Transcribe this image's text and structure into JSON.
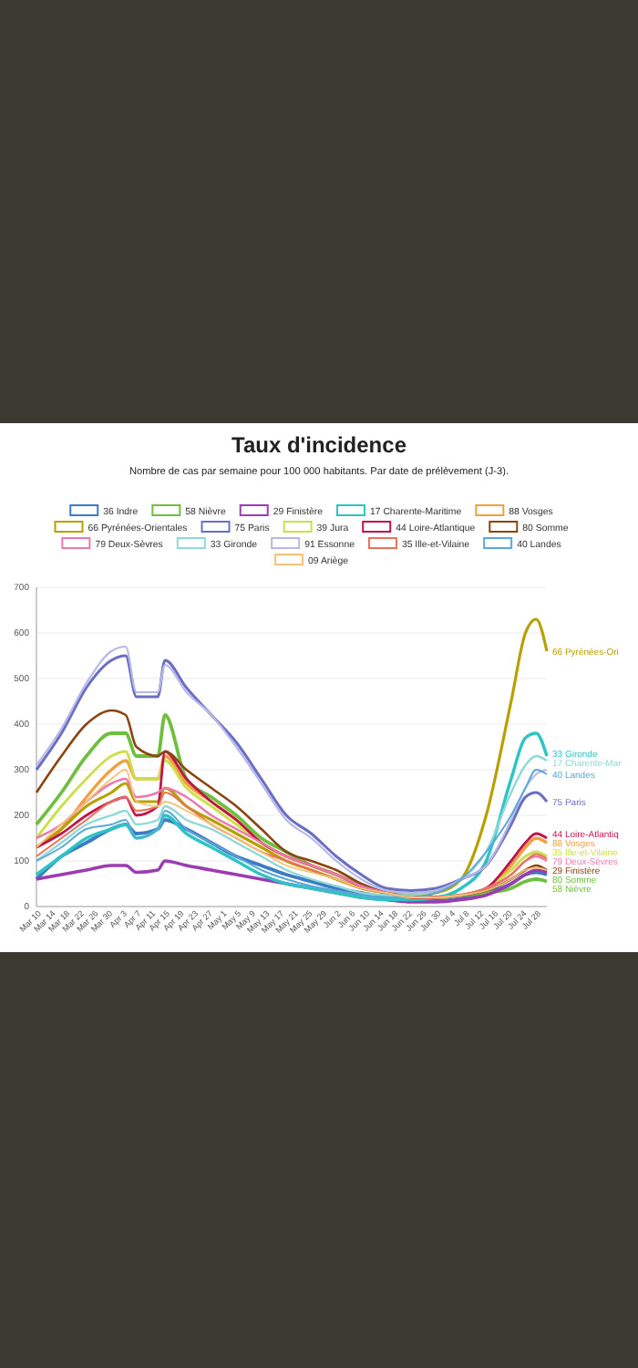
{
  "chart_data": {
    "type": "line",
    "title": "Taux d'incidence",
    "subtitle": "Nombre de cas par semaine pour 100 000 habitants. Par date de prélèvement (J-3).",
    "x": [
      "--03-10",
      "--03-17",
      "--03-24",
      "--03-31",
      "--04-04",
      "--04-07",
      "--04-13",
      "--04-15",
      "--04-21",
      "--04-28",
      "--05-05",
      "--05-12",
      "--05-19",
      "--05-26",
      "--06-02",
      "--06-09",
      "--06-16",
      "--06-23",
      "--06-30",
      "--07-07",
      "--07-14",
      "--07-21",
      "--07-25",
      "--07-28",
      "--07-31"
    ],
    "series": [
      {
        "name": "36 Indre",
        "color": "#3a7dc4",
        "values": [
          60,
          110,
          140,
          170,
          180,
          160,
          170,
          190,
          170,
          140,
          110,
          90,
          70,
          55,
          40,
          30,
          20,
          15,
          15,
          20,
          30,
          50,
          70,
          75,
          70
        ]
      },
      {
        "name": "58 Nièvre",
        "color": "#6fbf3f",
        "values": [
          180,
          250,
          330,
          380,
          380,
          330,
          330,
          420,
          280,
          240,
          200,
          150,
          120,
          90,
          70,
          45,
          30,
          20,
          20,
          25,
          30,
          40,
          55,
          60,
          55
        ]
      },
      {
        "name": "29 Finistère",
        "color": "#9b3cb0",
        "values": [
          60,
          70,
          80,
          90,
          90,
          75,
          80,
          100,
          90,
          80,
          70,
          60,
          50,
          40,
          30,
          20,
          15,
          10,
          10,
          15,
          25,
          50,
          70,
          80,
          75
        ]
      },
      {
        "name": "17 Charente-Maritime",
        "color": "#2ec4c4",
        "values": [
          70,
          110,
          150,
          170,
          180,
          150,
          170,
          200,
          160,
          130,
          100,
          70,
          50,
          40,
          30,
          20,
          15,
          15,
          20,
          40,
          100,
          280,
          370,
          380,
          330
        ]
      },
      {
        "name": "88 Vosges",
        "color": "#f0a040",
        "values": [
          130,
          170,
          240,
          300,
          320,
          280,
          280,
          330,
          270,
          230,
          190,
          140,
          110,
          90,
          70,
          45,
          30,
          20,
          20,
          25,
          40,
          90,
          130,
          150,
          140
        ]
      },
      {
        "name": "66 Pyrénées-Orientales",
        "color": "#b8a000",
        "values": [
          130,
          170,
          220,
          250,
          270,
          230,
          230,
          260,
          220,
          190,
          160,
          130,
          100,
          80,
          60,
          40,
          30,
          25,
          30,
          60,
          200,
          450,
          600,
          630,
          560
        ]
      },
      {
        "name": "75 Paris",
        "color": "#6a6fc4",
        "values": [
          300,
          380,
          480,
          540,
          550,
          460,
          460,
          540,
          480,
          420,
          360,
          280,
          200,
          160,
          110,
          70,
          40,
          35,
          40,
          60,
          90,
          180,
          240,
          250,
          230
        ]
      },
      {
        "name": "39 Jura",
        "color": "#cce04a",
        "values": [
          150,
          220,
          280,
          330,
          340,
          280,
          280,
          320,
          260,
          220,
          180,
          140,
          110,
          90,
          70,
          45,
          30,
          20,
          20,
          25,
          40,
          80,
          110,
          120,
          110
        ]
      },
      {
        "name": "44 Loire-Atlantique",
        "color": "#c0144c",
        "values": [
          130,
          160,
          200,
          230,
          240,
          200,
          220,
          340,
          280,
          230,
          190,
          140,
          110,
          90,
          70,
          45,
          30,
          20,
          20,
          25,
          40,
          100,
          140,
          160,
          150
        ]
      },
      {
        "name": "80 Somme",
        "color": "#8b4513",
        "values": [
          250,
          330,
          400,
          430,
          420,
          350,
          330,
          340,
          300,
          260,
          220,
          170,
          120,
          100,
          80,
          50,
          30,
          20,
          20,
          25,
          35,
          60,
          80,
          90,
          80
        ]
      },
      {
        "name": "79 Deux-Sèvres",
        "color": "#e87ab0",
        "values": [
          150,
          180,
          230,
          270,
          280,
          240,
          250,
          260,
          240,
          200,
          170,
          140,
          110,
          90,
          70,
          45,
          30,
          20,
          20,
          25,
          40,
          70,
          100,
          110,
          100
        ]
      },
      {
        "name": "33 Gironde",
        "color": "#8ed8d8",
        "values": [
          100,
          140,
          180,
          200,
          210,
          180,
          190,
          220,
          190,
          170,
          140,
          110,
          80,
          60,
          45,
          30,
          25,
          25,
          35,
          60,
          120,
          250,
          310,
          330,
          320
        ]
      },
      {
        "name": "91 Essonne",
        "color": "#b8b8e8",
        "values": [
          310,
          390,
          490,
          560,
          570,
          470,
          470,
          530,
          470,
          420,
          350,
          270,
          190,
          150,
          100,
          60,
          35,
          30,
          35,
          60,
          90,
          190,
          260,
          290,
          300
        ]
      },
      {
        "name": "35 Ille-et-Vilaine",
        "color": "#e8735a",
        "values": [
          110,
          150,
          190,
          230,
          240,
          210,
          220,
          250,
          220,
          180,
          150,
          120,
          100,
          80,
          60,
          40,
          30,
          20,
          20,
          25,
          40,
          70,
          100,
          115,
          105
        ]
      },
      {
        "name": "40 Landes",
        "color": "#5ba7d9",
        "values": [
          100,
          130,
          170,
          180,
          190,
          150,
          170,
          210,
          170,
          140,
          110,
          80,
          60,
          45,
          35,
          25,
          20,
          20,
          30,
          60,
          120,
          200,
          260,
          300,
          290
        ]
      },
      {
        "name": "09 Ariège",
        "color": "#f5c27a",
        "values": [
          130,
          180,
          230,
          280,
          300,
          230,
          220,
          230,
          210,
          180,
          150,
          120,
          90,
          75,
          60,
          40,
          30,
          20,
          20,
          25,
          35,
          60,
          80,
          85,
          80
        ]
      }
    ],
    "xlim": [
      "--03-10",
      "--07-31"
    ],
    "xticks": [
      {
        "value": "--03-10",
        "label": "Mar 10"
      },
      {
        "value": "--03-14",
        "label": "Mar 14"
      },
      {
        "value": "--03-18",
        "label": "Mar 18"
      },
      {
        "value": "--03-22",
        "label": "Mar 22"
      },
      {
        "value": "--03-26",
        "label": "Mar 26"
      },
      {
        "value": "--03-30",
        "label": "Mar 30"
      },
      {
        "value": "--04-03",
        "label": "Apr 3"
      },
      {
        "value": "--04-07",
        "label": "Apr 7"
      },
      {
        "value": "--04-11",
        "label": "Apr 11"
      },
      {
        "value": "--04-15",
        "label": "Apr 15"
      },
      {
        "value": "--04-19",
        "label": "Apr 19"
      },
      {
        "value": "--04-23",
        "label": "Apr 23"
      },
      {
        "value": "--04-27",
        "label": "Apr 27"
      },
      {
        "value": "--05-01",
        "label": "May 1"
      },
      {
        "value": "--05-05",
        "label": "May 5"
      },
      {
        "value": "--05-09",
        "label": "May 9"
      },
      {
        "value": "--05-13",
        "label": "May 13"
      },
      {
        "value": "--05-17",
        "label": "May 17"
      },
      {
        "value": "--05-21",
        "label": "May 21"
      },
      {
        "value": "--05-25",
        "label": "May 25"
      },
      {
        "value": "--05-29",
        "label": "May 29"
      },
      {
        "value": "--06-02",
        "label": "Jun 2"
      },
      {
        "value": "--06-06",
        "label": "Jun 6"
      },
      {
        "value": "--06-10",
        "label": "Jun 10"
      },
      {
        "value": "--06-14",
        "label": "Jun 14"
      },
      {
        "value": "--06-18",
        "label": "Jun 18"
      },
      {
        "value": "--06-22",
        "label": "Jun 22"
      },
      {
        "value": "--06-26",
        "label": "Jun 26"
      },
      {
        "value": "--06-30",
        "label": "Jun 30"
      },
      {
        "value": "--07-04",
        "label": "Jul 4"
      },
      {
        "value": "--07-08",
        "label": "Jul 8"
      },
      {
        "value": "--07-12",
        "label": "Jul 12"
      },
      {
        "value": "--07-16",
        "label": "Jul 16"
      },
      {
        "value": "--07-20",
        "label": "Jul 20"
      },
      {
        "value": "--07-24",
        "label": "Jul 24"
      },
      {
        "value": "--07-28",
        "label": "Jul 28"
      }
    ],
    "ylim": [
      0,
      700
    ],
    "yticks": [
      0,
      100,
      200,
      300,
      400,
      500,
      600,
      700
    ],
    "grid": "y",
    "legend": "top",
    "marker": "none",
    "line_style": "solid",
    "annotations": [
      {
        "text": "66 Pyrénées-Ori",
        "x": "--07-31",
        "y": 560
      },
      {
        "text": "33 Gironde",
        "x": "--07-31",
        "y": 335
      },
      {
        "text": "17 Charente-Mar",
        "x": "--07-31",
        "y": 315
      },
      {
        "text": "40 Landes",
        "x": "--07-31",
        "y": 290
      },
      {
        "text": "75 Paris",
        "x": "--07-31",
        "y": 230
      },
      {
        "text": "44 Loire-Atlantiq",
        "x": "--07-31",
        "y": 160
      },
      {
        "text": "88 Vosges",
        "x": "--07-31",
        "y": 140
      },
      {
        "text": "35 Ille-et-Vilaine",
        "x": "--07-31",
        "y": 120
      },
      {
        "text": "79 Deux-Sèvres",
        "x": "--07-31",
        "y": 100
      },
      {
        "text": "29 Finistère",
        "x": "--07-31",
        "y": 80
      },
      {
        "text": "80 Somme",
        "x": "--07-31",
        "y": 60
      },
      {
        "text": "58 Nièvre",
        "x": "--07-31",
        "y": 40
      }
    ]
  }
}
